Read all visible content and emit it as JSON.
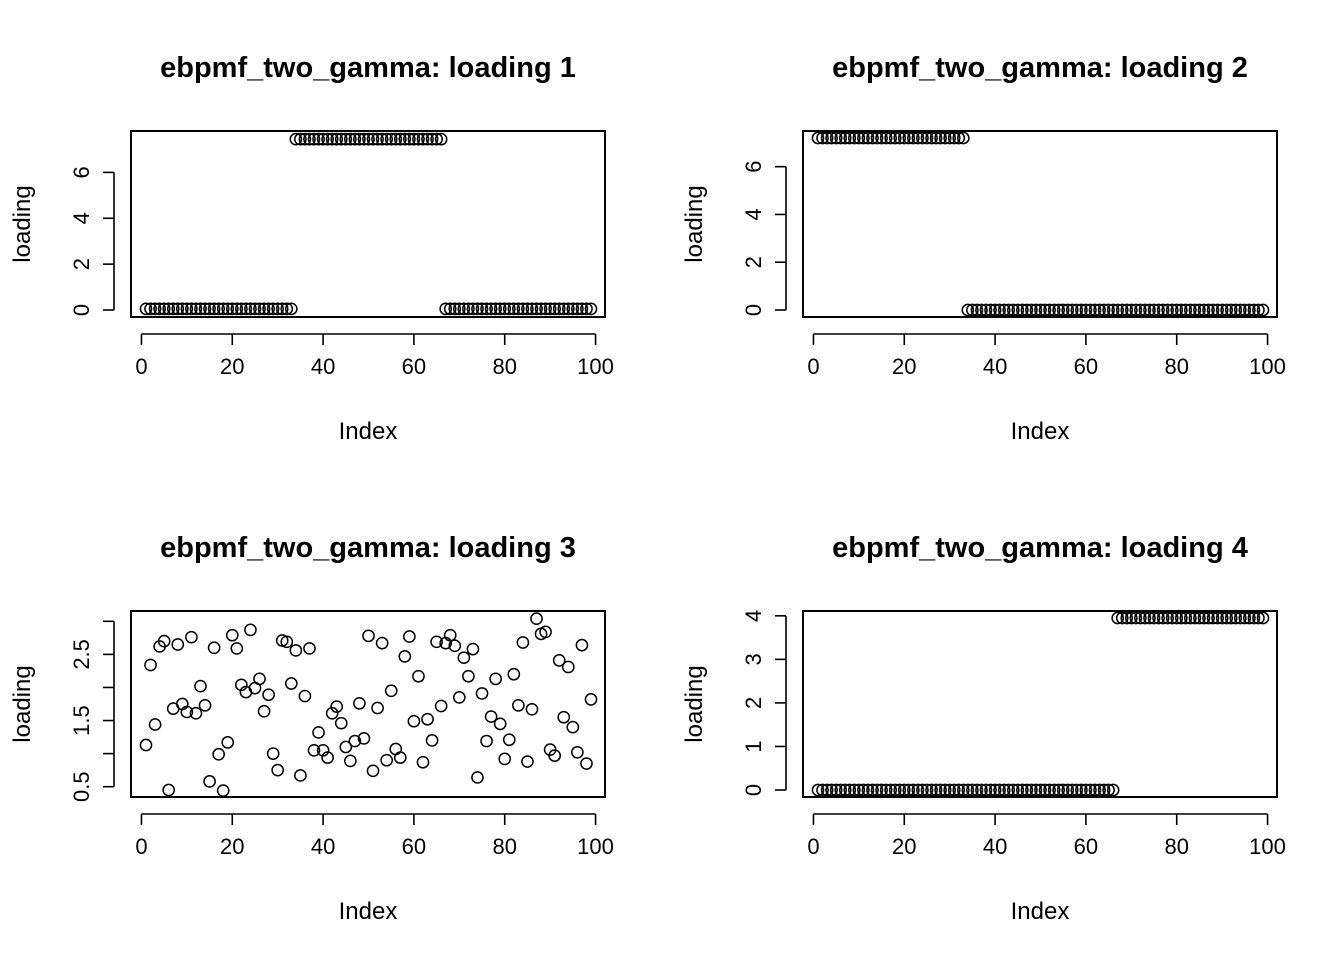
{
  "chart_data": [
    {
      "type": "scatter",
      "title": "ebpmf_two_gamma: loading 1",
      "xlabel": "Index",
      "ylabel": "loading",
      "xlim": [
        1,
        99
      ],
      "ylim": [
        0,
        7.5
      ],
      "xticks": [
        0,
        20,
        40,
        60,
        80,
        100
      ],
      "yticks": [
        0,
        2,
        4,
        6
      ],
      "x": [
        1,
        2,
        3,
        4,
        5,
        6,
        7,
        8,
        9,
        10,
        11,
        12,
        13,
        14,
        15,
        16,
        17,
        18,
        19,
        20,
        21,
        22,
        23,
        24,
        25,
        26,
        27,
        28,
        29,
        30,
        31,
        32,
        33,
        34,
        35,
        36,
        37,
        38,
        39,
        40,
        41,
        42,
        43,
        44,
        45,
        46,
        47,
        48,
        49,
        50,
        51,
        52,
        53,
        54,
        55,
        56,
        57,
        58,
        59,
        60,
        61,
        62,
        63,
        64,
        65,
        66,
        67,
        68,
        69,
        70,
        71,
        72,
        73,
        74,
        75,
        76,
        77,
        78,
        79,
        80,
        81,
        82,
        83,
        84,
        85,
        86,
        87,
        88,
        89,
        90,
        91,
        92,
        93,
        94,
        95,
        96,
        97,
        98,
        99
      ],
      "y": [
        0.05,
        0.05,
        0.05,
        0.05,
        0.05,
        0.05,
        0.05,
        0.05,
        0.05,
        0.05,
        0.05,
        0.05,
        0.05,
        0.05,
        0.05,
        0.05,
        0.05,
        0.05,
        0.05,
        0.05,
        0.05,
        0.05,
        0.05,
        0.05,
        0.05,
        0.05,
        0.05,
        0.05,
        0.05,
        0.05,
        0.05,
        0.05,
        0.05,
        7.45,
        7.45,
        7.45,
        7.45,
        7.45,
        7.45,
        7.45,
        7.45,
        7.45,
        7.45,
        7.45,
        7.45,
        7.45,
        7.45,
        7.45,
        7.45,
        7.45,
        7.45,
        7.45,
        7.45,
        7.45,
        7.45,
        7.45,
        7.45,
        7.45,
        7.45,
        7.45,
        7.45,
        7.45,
        7.45,
        7.45,
        7.45,
        7.45,
        0.05,
        0.05,
        0.05,
        0.05,
        0.05,
        0.05,
        0.05,
        0.05,
        0.05,
        0.05,
        0.05,
        0.05,
        0.05,
        0.05,
        0.05,
        0.05,
        0.05,
        0.05,
        0.05,
        0.05,
        0.05,
        0.05,
        0.05,
        0.05,
        0.05,
        0.05,
        0.05,
        0.05,
        0.05,
        0.05,
        0.05,
        0.05,
        0.05
      ]
    },
    {
      "type": "scatter",
      "title": "ebpmf_two_gamma: loading 2",
      "xlabel": "Index",
      "ylabel": "loading",
      "xlim": [
        1,
        99
      ],
      "ylim": [
        0,
        7.2
      ],
      "xticks": [
        0,
        20,
        40,
        60,
        80,
        100
      ],
      "yticks": [
        0,
        2,
        4,
        6
      ],
      "x": [
        1,
        2,
        3,
        4,
        5,
        6,
        7,
        8,
        9,
        10,
        11,
        12,
        13,
        14,
        15,
        16,
        17,
        18,
        19,
        20,
        21,
        22,
        23,
        24,
        25,
        26,
        27,
        28,
        29,
        30,
        31,
        32,
        33,
        34,
        35,
        36,
        37,
        38,
        39,
        40,
        41,
        42,
        43,
        44,
        45,
        46,
        47,
        48,
        49,
        50,
        51,
        52,
        53,
        54,
        55,
        56,
        57,
        58,
        59,
        60,
        61,
        62,
        63,
        64,
        65,
        66,
        67,
        68,
        69,
        70,
        71,
        72,
        73,
        74,
        75,
        76,
        77,
        78,
        79,
        80,
        81,
        82,
        83,
        84,
        85,
        86,
        87,
        88,
        89,
        90,
        91,
        92,
        93,
        94,
        95,
        96,
        97,
        98,
        99
      ],
      "y": [
        7.2,
        7.2,
        7.2,
        7.2,
        7.2,
        7.2,
        7.2,
        7.2,
        7.2,
        7.2,
        7.2,
        7.2,
        7.2,
        7.2,
        7.2,
        7.2,
        7.2,
        7.2,
        7.2,
        7.2,
        7.2,
        7.2,
        7.2,
        7.2,
        7.2,
        7.2,
        7.2,
        7.2,
        7.2,
        7.2,
        7.2,
        7.2,
        7.2,
        0.0,
        0.0,
        0.0,
        0.0,
        0.0,
        0.0,
        0.0,
        0.0,
        0.0,
        0.0,
        0.0,
        0.0,
        0.0,
        0.0,
        0.0,
        0.0,
        0.0,
        0.0,
        0.0,
        0.0,
        0.0,
        0.0,
        0.0,
        0.0,
        0.0,
        0.0,
        0.0,
        0.0,
        0.0,
        0.0,
        0.0,
        0.0,
        0.0,
        0.0,
        0.0,
        0.0,
        0.0,
        0.0,
        0.0,
        0.0,
        0.0,
        0.0,
        0.0,
        0.0,
        0.0,
        0.0,
        0.0,
        0.0,
        0.0,
        0.0,
        0.0,
        0.0,
        0.0,
        0.0,
        0.0,
        0.0,
        0.0,
        0.0,
        0.0,
        0.0,
        0.0,
        0.0,
        0.0,
        0.0,
        0.0,
        0.0
      ]
    },
    {
      "type": "scatter",
      "title": "ebpmf_two_gamma: loading 3",
      "xlabel": "Index",
      "ylabel": "loading",
      "xlim": [
        1,
        99
      ],
      "ylim": [
        0.45,
        3.05
      ],
      "xticks": [
        0,
        20,
        40,
        60,
        80,
        100
      ],
      "yticks": [
        0.5,
        1.5,
        2.5
      ],
      "yticks_minor": [
        1.0,
        2.0,
        3.0
      ],
      "x": [
        1,
        2,
        3,
        4,
        5,
        6,
        7,
        8,
        9,
        10,
        11,
        12,
        13,
        14,
        15,
        16,
        17,
        18,
        19,
        20,
        21,
        22,
        23,
        24,
        25,
        26,
        27,
        28,
        29,
        30,
        31,
        32,
        33,
        34,
        35,
        36,
        37,
        38,
        39,
        40,
        41,
        42,
        43,
        44,
        45,
        46,
        47,
        48,
        49,
        50,
        51,
        52,
        53,
        54,
        55,
        56,
        57,
        58,
        59,
        60,
        61,
        62,
        63,
        64,
        65,
        66,
        67,
        68,
        69,
        70,
        71,
        72,
        73,
        74,
        75,
        76,
        77,
        78,
        79,
        80,
        81,
        82,
        83,
        84,
        85,
        86,
        87,
        88,
        89,
        90,
        91,
        92,
        93,
        94,
        95,
        96,
        97,
        98,
        99
      ],
      "y": [
        1.13,
        2.34,
        1.44,
        2.62,
        2.7,
        0.45,
        1.68,
        2.65,
        1.75,
        1.63,
        2.76,
        1.61,
        2.02,
        1.73,
        0.58,
        2.6,
        0.99,
        0.44,
        1.17,
        2.79,
        2.59,
        2.04,
        1.93,
        2.87,
        1.99,
        2.13,
        1.64,
        1.89,
        1.0,
        0.75,
        2.71,
        2.69,
        2.06,
        2.56,
        0.67,
        1.87,
        2.59,
        1.05,
        1.32,
        1.05,
        0.94,
        1.61,
        1.71,
        1.46,
        1.1,
        0.89,
        1.19,
        1.76,
        1.23,
        2.78,
        0.74,
        1.69,
        2.67,
        0.9,
        1.95,
        1.07,
        0.94,
        2.47,
        2.77,
        1.49,
        2.17,
        0.87,
        1.52,
        1.2,
        2.69,
        1.72,
        2.67,
        2.79,
        2.63,
        1.85,
        2.45,
        2.17,
        2.58,
        0.64,
        1.91,
        1.19,
        1.56,
        2.13,
        1.45,
        0.92,
        1.21,
        2.2,
        1.73,
        2.68,
        0.88,
        1.67,
        3.04,
        2.81,
        2.84,
        1.06,
        0.97,
        2.41,
        1.55,
        2.31,
        1.4,
        1.02,
        2.64,
        0.85,
        1.82
      ]
    },
    {
      "type": "scatter",
      "title": "ebpmf_two_gamma: loading 4",
      "xlabel": "Index",
      "ylabel": "loading",
      "xlim": [
        1,
        99
      ],
      "ylim": [
        0,
        3.95
      ],
      "xticks": [
        0,
        20,
        40,
        60,
        80,
        100
      ],
      "yticks": [
        0,
        1,
        2,
        3,
        4
      ],
      "x": [
        1,
        2,
        3,
        4,
        5,
        6,
        7,
        8,
        9,
        10,
        11,
        12,
        13,
        14,
        15,
        16,
        17,
        18,
        19,
        20,
        21,
        22,
        23,
        24,
        25,
        26,
        27,
        28,
        29,
        30,
        31,
        32,
        33,
        34,
        35,
        36,
        37,
        38,
        39,
        40,
        41,
        42,
        43,
        44,
        45,
        46,
        47,
        48,
        49,
        50,
        51,
        52,
        53,
        54,
        55,
        56,
        57,
        58,
        59,
        60,
        61,
        62,
        63,
        64,
        65,
        66,
        67,
        68,
        69,
        70,
        71,
        72,
        73,
        74,
        75,
        76,
        77,
        78,
        79,
        80,
        81,
        82,
        83,
        84,
        85,
        86,
        87,
        88,
        89,
        90,
        91,
        92,
        93,
        94,
        95,
        96,
        97,
        98,
        99
      ],
      "y": [
        0.0,
        0.0,
        0.0,
        0.0,
        0.0,
        0.0,
        0.0,
        0.0,
        0.0,
        0.0,
        0.0,
        0.0,
        0.0,
        0.0,
        0.0,
        0.0,
        0.0,
        0.0,
        0.0,
        0.0,
        0.0,
        0.0,
        0.0,
        0.0,
        0.0,
        0.0,
        0.0,
        0.0,
        0.0,
        0.0,
        0.0,
        0.0,
        0.0,
        0.0,
        0.0,
        0.0,
        0.0,
        0.0,
        0.0,
        0.0,
        0.0,
        0.0,
        0.0,
        0.0,
        0.0,
        0.0,
        0.0,
        0.0,
        0.0,
        0.0,
        0.0,
        0.0,
        0.0,
        0.0,
        0.0,
        0.0,
        0.0,
        0.0,
        0.0,
        0.0,
        0.0,
        0.0,
        0.0,
        0.0,
        0.0,
        0.0,
        3.95,
        3.95,
        3.95,
        3.95,
        3.95,
        3.95,
        3.95,
        3.95,
        3.95,
        3.95,
        3.95,
        3.95,
        3.95,
        3.95,
        3.95,
        3.95,
        3.95,
        3.95,
        3.95,
        3.95,
        3.95,
        3.95,
        3.95,
        3.95,
        3.95,
        3.95,
        3.95,
        3.95,
        3.95,
        3.95,
        3.95,
        3.95,
        3.95
      ]
    }
  ]
}
